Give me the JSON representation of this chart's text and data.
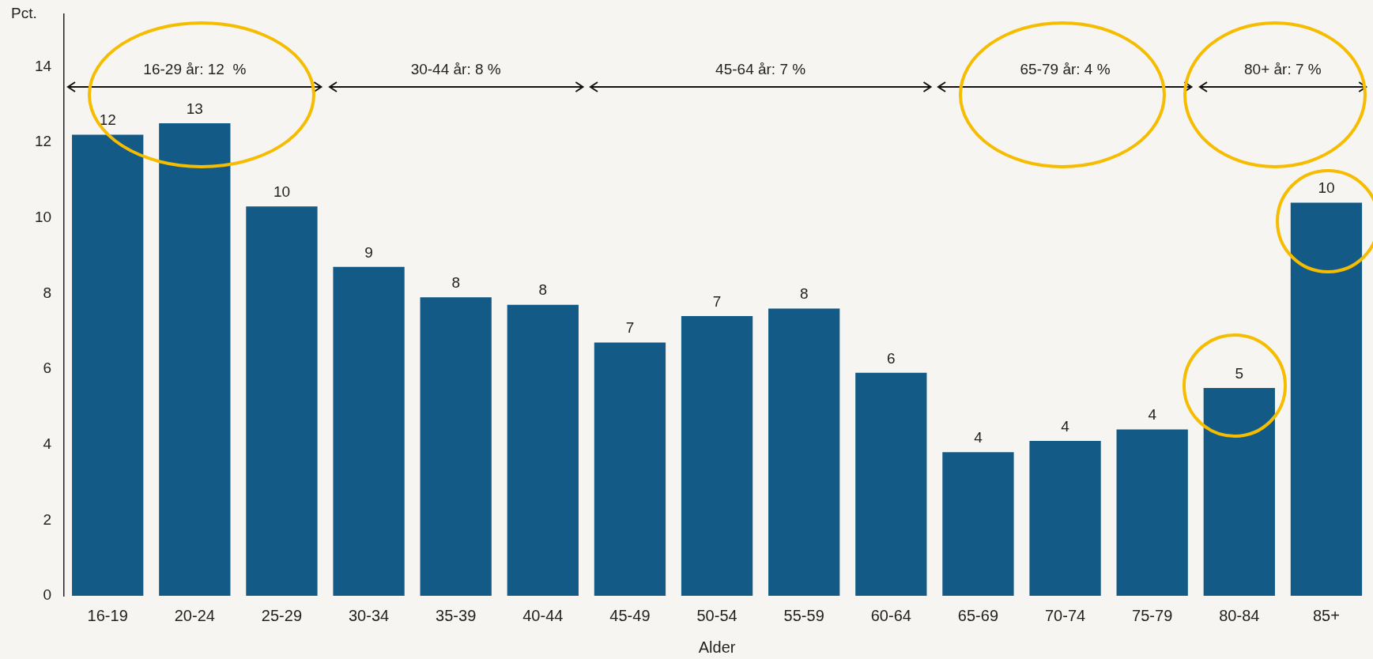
{
  "chart_data": {
    "type": "bar",
    "xlabel": "Alder",
    "ylabel": "Pct.",
    "categories": [
      "16-19",
      "20-24",
      "25-29",
      "30-34",
      "35-39",
      "40-44",
      "45-49",
      "50-54",
      "55-59",
      "60-64",
      "65-69",
      "70-74",
      "75-79",
      "80-84",
      "85+"
    ],
    "values": [
      12.2,
      12.5,
      10.3,
      8.7,
      7.9,
      7.7,
      6.7,
      7.4,
      7.6,
      5.9,
      3.8,
      4.1,
      4.4,
      5.5,
      10.4
    ],
    "value_labels": [
      "12",
      "13",
      "10",
      "9",
      "8",
      "8",
      "7",
      "7",
      "8",
      "6",
      "4",
      "4",
      "4",
      "5",
      "10"
    ],
    "color": "#135b86",
    "ylim": [
      0,
      15.4
    ],
    "yticks": [
      0,
      2,
      4,
      6,
      8,
      10,
      12,
      14
    ],
    "grid": false,
    "legend": false,
    "annotations": [
      "16-29 år: 12  %",
      "30-44 år: 8 %",
      "45-64 år: 7 %",
      "65-79 år: 4 %",
      "80+ år: 7 %"
    ]
  }
}
